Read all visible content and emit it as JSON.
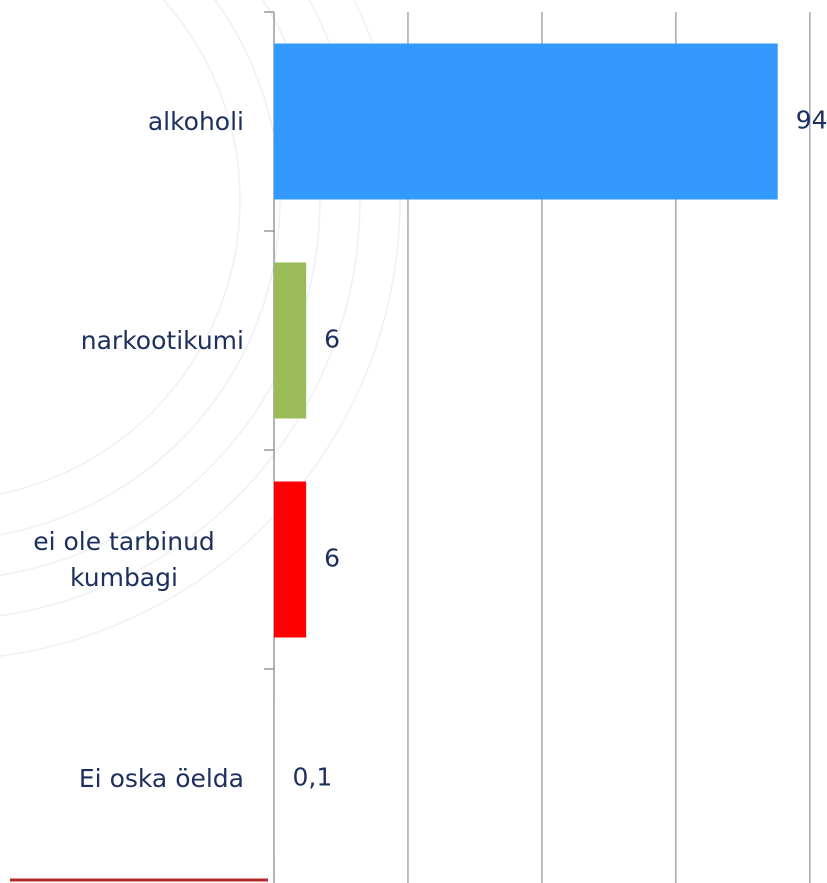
{
  "chart_data": {
    "type": "barh",
    "categories": [
      "alkoholi",
      "narkootikumi",
      "ei ole tarbinud kumbagi",
      "Ei oska öelda"
    ],
    "values": [
      94,
      6,
      6,
      0.1
    ],
    "value_labels": [
      "94",
      "6",
      "6",
      "0,1"
    ],
    "colors": [
      "#3399ff",
      "#9bbb59",
      "#ff0000",
      "#a0a0a0"
    ],
    "xlim": [
      0,
      103.2
    ],
    "xticks": [
      0,
      25,
      50,
      75,
      100
    ],
    "grid": true
  }
}
